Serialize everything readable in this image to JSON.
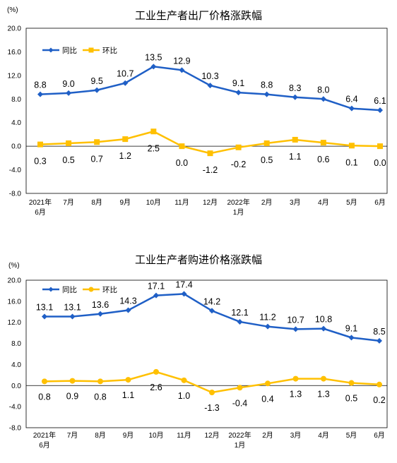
{
  "chart_data": [
    {
      "type": "line",
      "title": "工业生产者出厂价格涨跌幅",
      "unit_label": "(%)",
      "categories": [
        [
          "2021年",
          "6月"
        ],
        [
          "7月"
        ],
        [
          "8月"
        ],
        [
          "9月"
        ],
        [
          "10月"
        ],
        [
          "11月"
        ],
        [
          "12月"
        ],
        [
          "2022年",
          "1月"
        ],
        [
          "2月"
        ],
        [
          "3月"
        ],
        [
          "4月"
        ],
        [
          "5月"
        ],
        [
          "6月"
        ]
      ],
      "y_ticks": [
        "20.0",
        "16.0",
        "12.0",
        "8.0",
        "4.0",
        "0.0",
        "-4.0",
        "-8.0"
      ],
      "ylim": [
        -8,
        20
      ],
      "legend_position": "top-left",
      "grid": false,
      "series": [
        {
          "name": "同比",
          "color": "#1F5FC6",
          "marker": "diamond",
          "values": [
            8.8,
            9.0,
            9.5,
            10.7,
            13.5,
            12.9,
            10.3,
            9.1,
            8.8,
            8.3,
            8.0,
            6.4,
            6.1
          ],
          "labels": [
            "8.8",
            "9.0",
            "9.5",
            "10.7",
            "13.5",
            "12.9",
            "10.3",
            "9.1",
            "8.8",
            "8.3",
            "8.0",
            "6.4",
            "6.1"
          ]
        },
        {
          "name": "环比",
          "color": "#FFC000",
          "marker": "square",
          "values": [
            0.3,
            0.5,
            0.7,
            1.2,
            2.5,
            0.0,
            -1.2,
            -0.2,
            0.5,
            1.1,
            0.6,
            0.1,
            0.0
          ],
          "labels": [
            "0.3",
            "0.5",
            "0.7",
            "1.2",
            "2.5",
            "0.0",
            "-1.2",
            "-0.2",
            "0.5",
            "1.1",
            "0.6",
            "0.1",
            "0.0"
          ]
        }
      ]
    },
    {
      "type": "line",
      "title": "工业生产者购进价格涨跌幅",
      "unit_label": "(%)",
      "categories": [
        [
          "2021年",
          "6月"
        ],
        [
          "7月"
        ],
        [
          "8月"
        ],
        [
          "9月"
        ],
        [
          "10月"
        ],
        [
          "11月"
        ],
        [
          "12月"
        ],
        [
          "2022年",
          "1月"
        ],
        [
          "2月"
        ],
        [
          "3月"
        ],
        [
          "4月"
        ],
        [
          "5月"
        ],
        [
          "6月"
        ]
      ],
      "y_ticks": [
        "20.0",
        "16.0",
        "12.0",
        "8.0",
        "4.0",
        "0.0",
        "-4.0",
        "-8.0"
      ],
      "ylim": [
        -8,
        20
      ],
      "legend_position": "top-left",
      "grid": false,
      "series": [
        {
          "name": "同比",
          "color": "#1F5FC6",
          "marker": "diamond",
          "values": [
            13.1,
            13.1,
            13.6,
            14.3,
            17.1,
            17.4,
            14.2,
            12.1,
            11.2,
            10.7,
            10.8,
            9.1,
            8.5
          ],
          "labels": [
            "13.1",
            "13.1",
            "13.6",
            "14.3",
            "17.1",
            "17.4",
            "14.2",
            "12.1",
            "11.2",
            "10.7",
            "10.8",
            "9.1",
            "8.5"
          ]
        },
        {
          "name": "环比",
          "color": "#FFC000",
          "marker": "circle",
          "values": [
            0.8,
            0.9,
            0.8,
            1.1,
            2.6,
            1.0,
            -1.3,
            -0.4,
            0.4,
            1.3,
            1.3,
            0.5,
            0.2
          ],
          "labels": [
            "0.8",
            "0.9",
            "0.8",
            "1.1",
            "2.6",
            "1.0",
            "-1.3",
            "-0.4",
            "0.4",
            "1.3",
            "1.3",
            "0.5",
            "0.2"
          ]
        }
      ]
    }
  ]
}
